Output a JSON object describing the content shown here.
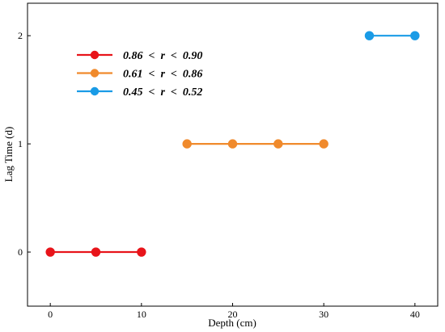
{
  "chart_data": {
    "type": "line",
    "xlabel": "Depth  (cm)",
    "ylabel": "Lag Time  (d)",
    "xlim": [
      -2.5,
      42.5
    ],
    "ylim": [
      -0.5,
      2.3
    ],
    "xticks": [
      0,
      10,
      20,
      30,
      40
    ],
    "yticks": [
      0,
      1,
      2
    ],
    "legend_position": "upper-left",
    "series": [
      {
        "name": "0.86  <  r  <  0.90",
        "color": "#e8141a",
        "x": [
          0,
          5,
          10
        ],
        "y": [
          0,
          0,
          0
        ]
      },
      {
        "name": "0.61  <  r  <  0.86",
        "color": "#f08a2c",
        "x": [
          15,
          20,
          25,
          30
        ],
        "y": [
          1,
          1,
          1,
          1
        ]
      },
      {
        "name": "0.45  <  r  <  0.52",
        "color": "#1a9be6",
        "x": [
          35,
          40
        ],
        "y": [
          2,
          2
        ]
      }
    ]
  }
}
